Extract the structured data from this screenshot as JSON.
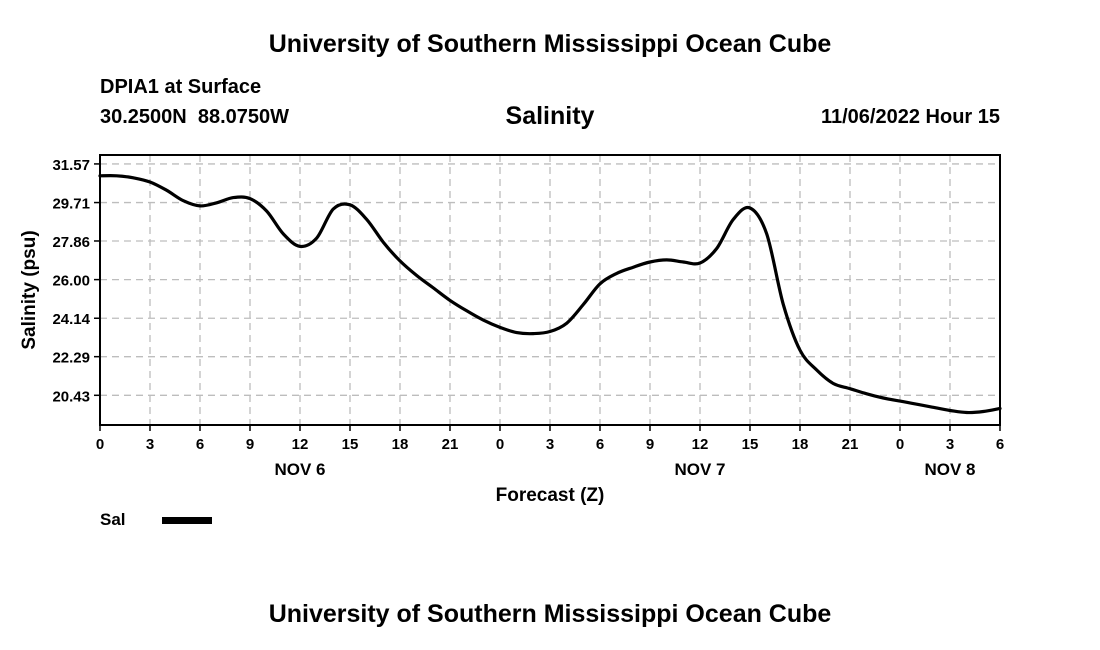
{
  "page": {
    "title_top": "University of Southern Mississippi Ocean Cube",
    "title_bottom": "University of Southern Mississippi Ocean Cube",
    "station": "DPIA1 at Surface",
    "coords": "30.2500N  88.0750W",
    "datetime": "11/06/2022 Hour 15"
  },
  "chart_data": {
    "type": "line",
    "title": "Salinity",
    "xlabel": "Forecast (Z)",
    "ylabel": "Salinity (psu)",
    "ylim": [
      19.0,
      32.0
    ],
    "xlim": [
      0,
      54
    ],
    "yticks": [
      20.43,
      22.29,
      24.14,
      26.0,
      27.86,
      29.71,
      31.57
    ],
    "ytick_labels": [
      "20.43",
      "22.29",
      "24.14",
      "26.00",
      "27.86",
      "29.71",
      "31.57"
    ],
    "xtick_labels": [
      "0",
      "3",
      "6",
      "9",
      "12",
      "15",
      "18",
      "21",
      "0",
      "3",
      "6",
      "9",
      "12",
      "15",
      "18",
      "21",
      "0",
      "3",
      "6"
    ],
    "day_labels": [
      {
        "label": "NOV 6",
        "at": 12
      },
      {
        "label": "NOV 7",
        "at": 36
      },
      {
        "label": "NOV 8",
        "at": 51
      }
    ],
    "grid": true,
    "legend": [
      {
        "name": "Sal",
        "color": "#000000"
      }
    ],
    "series": [
      {
        "name": "Sal",
        "x": [
          0,
          1,
          2,
          3,
          4,
          5,
          6,
          7,
          8,
          9,
          10,
          11,
          12,
          13,
          14,
          15,
          16,
          17,
          18,
          19,
          20,
          21,
          22,
          23,
          24,
          25,
          26,
          27,
          28,
          29,
          30,
          31,
          32,
          33,
          34,
          35,
          36,
          37,
          38,
          39,
          40,
          41,
          42,
          43,
          44,
          45,
          46,
          47,
          48,
          49,
          50,
          51,
          52,
          53,
          54
        ],
        "values": [
          31.0,
          31.0,
          30.9,
          30.7,
          30.3,
          29.8,
          29.55,
          29.7,
          29.95,
          29.9,
          29.3,
          28.2,
          27.6,
          28.0,
          29.4,
          29.6,
          28.9,
          27.8,
          26.9,
          26.2,
          25.6,
          25.0,
          24.5,
          24.05,
          23.7,
          23.45,
          23.4,
          23.5,
          23.9,
          24.8,
          25.8,
          26.3,
          26.6,
          26.85,
          26.95,
          26.85,
          26.8,
          27.5,
          28.9,
          29.45,
          28.2,
          24.8,
          22.6,
          21.65,
          21.0,
          20.75,
          20.5,
          20.3,
          20.15,
          20.0,
          19.85,
          19.7,
          19.6,
          19.65,
          19.8
        ]
      }
    ]
  }
}
